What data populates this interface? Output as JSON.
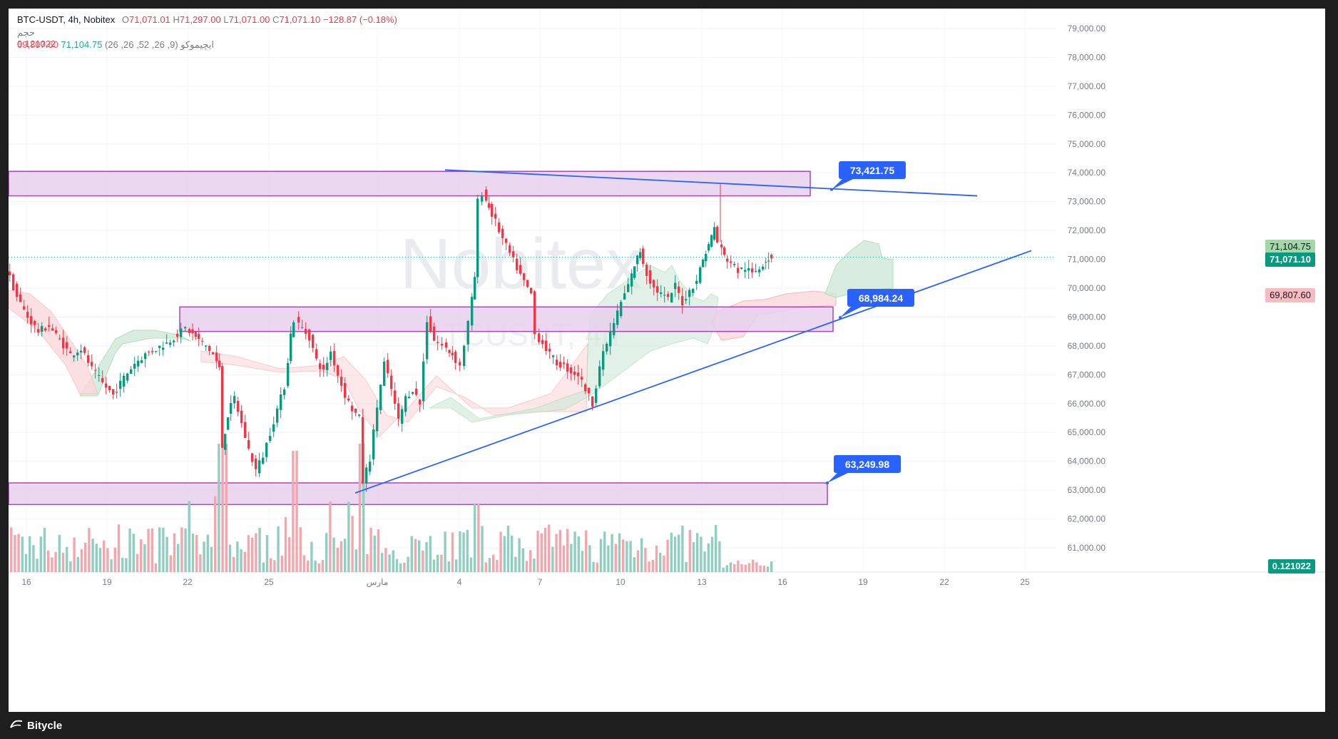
{
  "legend": {
    "symbol": "BTC-USDT, 4h, Nobitex",
    "o_label": "O",
    "o": "71,071.01",
    "h_label": "H",
    "h": "71,297.00",
    "l_label": "L",
    "l": "71,071.00",
    "c_label": "C",
    "c": "71,071.10",
    "change": "−128.87 (−0.18%)",
    "volume_label": "حجم",
    "volume_value": "0.121022",
    "ichimoku_label": "ایچیموکو (9, 26, 52, 26, 26)",
    "ichimoku_v1": "71,104.75",
    "ichimoku_v2": "69,807.60"
  },
  "watermark": {
    "line1": "Nobitex",
    "line2": "BTCUSDT, 4h"
  },
  "brand": {
    "name": "Bitycle"
  },
  "axis": {
    "y_ticks": [
      "79,000.00",
      "78,000.00",
      "77,000.00",
      "76,000.00",
      "75,000.00",
      "74,000.00",
      "73,000.00",
      "72,000.00",
      "71,000.00",
      "70,000.00",
      "69,000.00",
      "68,000.00",
      "67,000.00",
      "66,000.00",
      "65,000.00",
      "64,000.00",
      "63,000.00",
      "62,000.00",
      "61,000.00"
    ],
    "x_ticks": [
      "16",
      "19",
      "22",
      "25",
      "مارس",
      "4",
      "7",
      "10",
      "13",
      "16",
      "19",
      "22",
      "25"
    ]
  },
  "price_tags": {
    "ichimoku_a": "71,104.75",
    "last": "71,071.10",
    "ichimoku_b": "69,807.60",
    "volume": "0.121022"
  },
  "annotations": [
    "73,421.75",
    "68,984.24",
    "63,249.98"
  ],
  "colors": {
    "up": "#089981",
    "down": "#f23645",
    "zone_fill": "#e8d1ee",
    "zone_border": "#9c27b0",
    "trendline": "#2962ff",
    "callout": "#2962ff",
    "cloud_green": "#cfe9d8",
    "cloud_red": "#fbd9dc"
  },
  "chart_data": {
    "type": "candlestick",
    "symbol": "BTC-USDT",
    "timeframe": "4h",
    "ylim": [
      60500,
      79500
    ],
    "zones": [
      {
        "low": 73200,
        "high": 74050
      },
      {
        "low": 68500,
        "high": 69350
      },
      {
        "low": 62500,
        "high": 63250
      }
    ],
    "resistance_line": {
      "from": 74100,
      "to": 73421.75,
      "label": "73,421.75"
    },
    "support_line": {
      "from": 62900,
      "to": 68984.24,
      "label": "68,984.24"
    },
    "support_zone_label": "63,249.98"
  }
}
